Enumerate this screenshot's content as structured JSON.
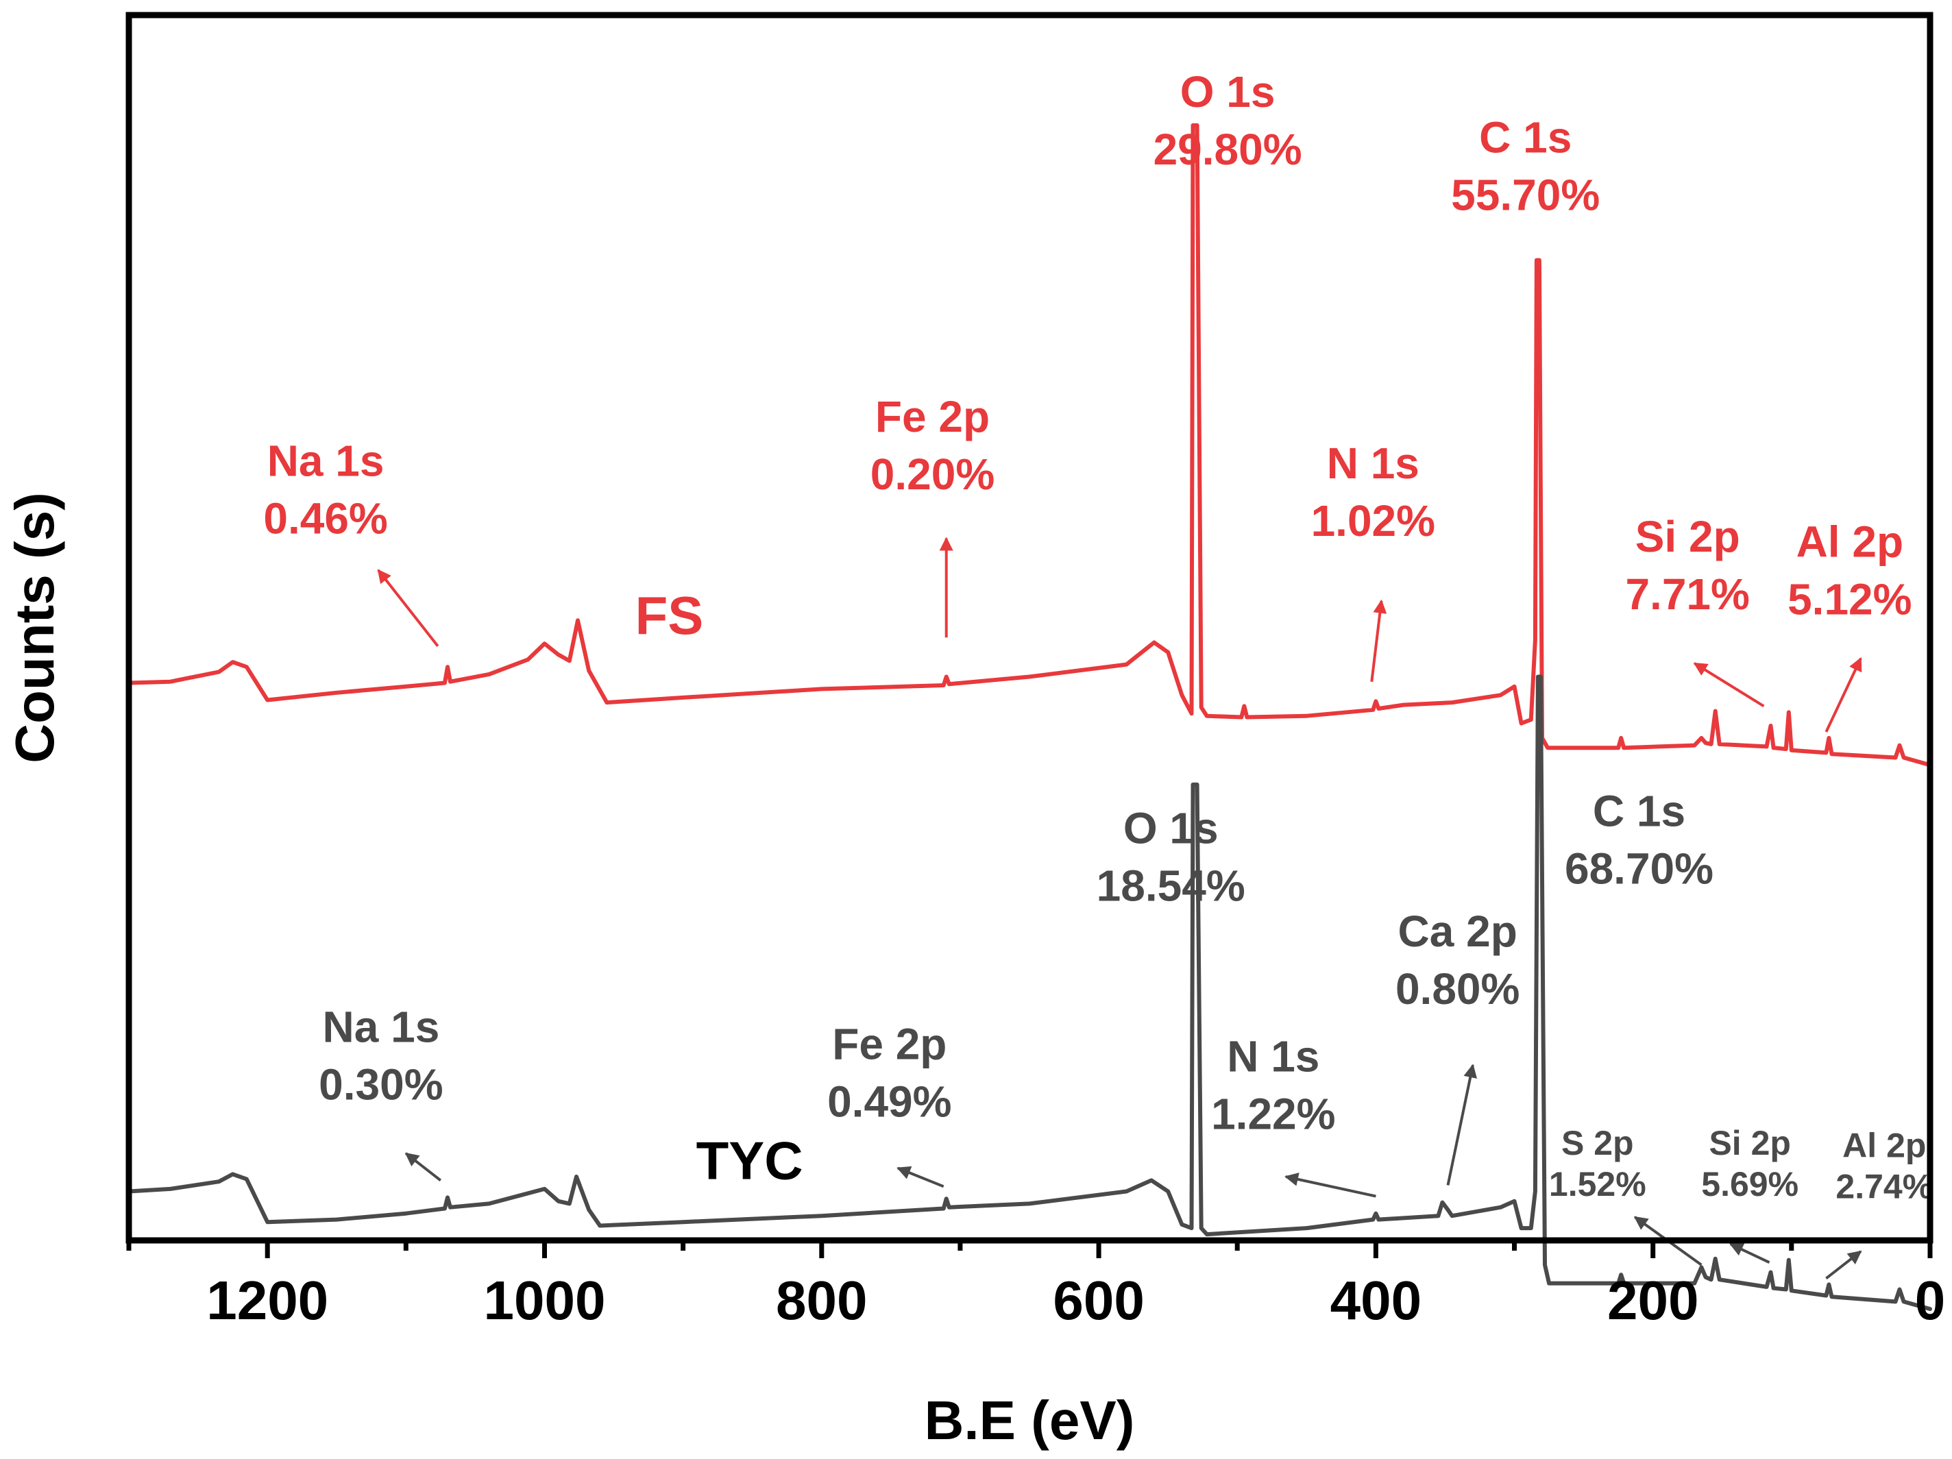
{
  "chart_data": {
    "type": "line",
    "title": "",
    "xlabel": "B.E (eV)",
    "ylabel": "Counts (s)",
    "xlim": [
      1300,
      0
    ],
    "x_reversed": true,
    "xticks": [
      "1200",
      "1000",
      "800",
      "600",
      "400",
      "200",
      "0"
    ],
    "grid": false,
    "legend": "none",
    "colors": {
      "FS": "#e8393c",
      "TYC": "#4a4a4a",
      "axis": "#000000"
    },
    "series": [
      {
        "name": "FS",
        "color": "#e8393c",
        "points": [
          [
            1300,
            0.545
          ],
          [
            1270,
            0.544
          ],
          [
            1235,
            0.536
          ],
          [
            1225,
            0.528
          ],
          [
            1215,
            0.532
          ],
          [
            1200,
            0.559
          ],
          [
            1150,
            0.553
          ],
          [
            1100,
            0.548
          ],
          [
            1072,
            0.545
          ],
          [
            1070,
            0.532
          ],
          [
            1068,
            0.544
          ],
          [
            1040,
            0.538
          ],
          [
            1012,
            0.526
          ],
          [
            1000,
            0.513
          ],
          [
            990,
            0.522
          ],
          [
            982,
            0.527
          ],
          [
            976,
            0.494
          ],
          [
            968,
            0.535
          ],
          [
            955,
            0.561
          ],
          [
            900,
            0.557
          ],
          [
            800,
            0.55
          ],
          [
            712,
            0.547
          ],
          [
            710,
            0.54
          ],
          [
            708,
            0.546
          ],
          [
            650,
            0.54
          ],
          [
            580,
            0.53
          ],
          [
            560,
            0.512
          ],
          [
            550,
            0.52
          ],
          [
            540,
            0.555
          ],
          [
            533,
            0.57
          ],
          [
            532,
            0.09
          ],
          [
            529,
            0.09
          ],
          [
            526,
            0.565
          ],
          [
            522,
            0.572
          ],
          [
            497,
            0.573
          ],
          [
            495,
            0.564
          ],
          [
            493,
            0.573
          ],
          [
            450,
            0.572
          ],
          [
            402,
            0.567
          ],
          [
            400,
            0.56
          ],
          [
            398,
            0.566
          ],
          [
            380,
            0.563
          ],
          [
            345,
            0.561
          ],
          [
            310,
            0.555
          ],
          [
            300,
            0.548
          ],
          [
            295,
            0.578
          ],
          [
            288,
            0.575
          ],
          [
            285,
            0.51
          ],
          [
            284,
            0.2
          ],
          [
            282,
            0.2
          ],
          [
            280,
            0.59
          ],
          [
            276,
            0.598
          ],
          [
            225,
            0.598
          ],
          [
            223,
            0.59
          ],
          [
            221,
            0.598
          ],
          [
            170,
            0.596
          ],
          [
            165,
            0.59
          ],
          [
            162,
            0.594
          ],
          [
            158,
            0.595
          ],
          [
            155,
            0.568
          ],
          [
            152,
            0.595
          ],
          [
            118,
            0.597
          ],
          [
            115,
            0.58
          ],
          [
            113,
            0.598
          ],
          [
            104,
            0.599
          ],
          [
            102,
            0.569
          ],
          [
            100,
            0.6
          ],
          [
            75,
            0.602
          ],
          [
            73,
            0.59
          ],
          [
            71,
            0.603
          ],
          [
            25,
            0.606
          ],
          [
            22,
            0.596
          ],
          [
            19,
            0.606
          ],
          [
            0,
            0.612
          ]
        ]
      },
      {
        "name": "TYC",
        "color": "#4a4a4a",
        "points": [
          [
            1300,
            0.96
          ],
          [
            1270,
            0.958
          ],
          [
            1235,
            0.952
          ],
          [
            1225,
            0.946
          ],
          [
            1215,
            0.95
          ],
          [
            1200,
            0.985
          ],
          [
            1150,
            0.983
          ],
          [
            1100,
            0.978
          ],
          [
            1072,
            0.974
          ],
          [
            1070,
            0.965
          ],
          [
            1068,
            0.973
          ],
          [
            1040,
            0.97
          ],
          [
            1000,
            0.958
          ],
          [
            990,
            0.968
          ],
          [
            982,
            0.97
          ],
          [
            977,
            0.948
          ],
          [
            968,
            0.975
          ],
          [
            960,
            0.988
          ],
          [
            900,
            0.985
          ],
          [
            800,
            0.98
          ],
          [
            712,
            0.974
          ],
          [
            710,
            0.966
          ],
          [
            708,
            0.973
          ],
          [
            650,
            0.97
          ],
          [
            580,
            0.96
          ],
          [
            562,
            0.951
          ],
          [
            550,
            0.96
          ],
          [
            540,
            0.987
          ],
          [
            533,
            0.99
          ],
          [
            532,
            0.628
          ],
          [
            529,
            0.628
          ],
          [
            526,
            0.99
          ],
          [
            522,
            0.995
          ],
          [
            450,
            0.99
          ],
          [
            402,
            0.983
          ],
          [
            400,
            0.978
          ],
          [
            398,
            0.983
          ],
          [
            355,
            0.98
          ],
          [
            352,
            0.969
          ],
          [
            348,
            0.975
          ],
          [
            345,
            0.98
          ],
          [
            310,
            0.973
          ],
          [
            300,
            0.968
          ],
          [
            295,
            0.99
          ],
          [
            288,
            0.99
          ],
          [
            285,
            0.96
          ],
          [
            283,
            0.54
          ],
          [
            281,
            0.54
          ],
          [
            278,
            1.02
          ],
          [
            275,
            1.035
          ],
          [
            225,
            1.035
          ],
          [
            223,
            1.028
          ],
          [
            221,
            1.035
          ],
          [
            170,
            1.035
          ],
          [
            165,
            1.022
          ],
          [
            162,
            1.03
          ],
          [
            158,
            1.032
          ],
          [
            155,
            1.015
          ],
          [
            152,
            1.032
          ],
          [
            118,
            1.038
          ],
          [
            115,
            1.026
          ],
          [
            113,
            1.039
          ],
          [
            104,
            1.04
          ],
          [
            102,
            1.016
          ],
          [
            100,
            1.041
          ],
          [
            75,
            1.045
          ],
          [
            73,
            1.036
          ],
          [
            71,
            1.046
          ],
          [
            25,
            1.05
          ],
          [
            22,
            1.04
          ],
          [
            19,
            1.05
          ],
          [
            0,
            1.056
          ]
        ]
      }
    ],
    "series_labels": [
      {
        "text": "FS",
        "series": "FS",
        "x": 910,
        "y": 0.505
      },
      {
        "text": "TYC",
        "series": "TYC",
        "x": 852,
        "y": 0.95
      }
    ],
    "annotations": [
      {
        "series": "FS",
        "size": "large",
        "lines": [
          "O 1s",
          "29.80%"
        ],
        "x": 507,
        "y": 0.075
      },
      {
        "series": "FS",
        "size": "large",
        "lines": [
          "C 1s",
          "55.70%"
        ],
        "x": 292,
        "y": 0.112
      },
      {
        "series": "FS",
        "size": "large",
        "lines": [
          "Na 1s",
          "0.46%"
        ],
        "x": 1158,
        "y": 0.376
      },
      {
        "series": "FS",
        "size": "large",
        "lines": [
          "Fe 2p",
          "0.20%"
        ],
        "x": 720,
        "y": 0.34
      },
      {
        "series": "FS",
        "size": "large",
        "lines": [
          "N 1s",
          "1.02%"
        ],
        "x": 402,
        "y": 0.378
      },
      {
        "series": "FS",
        "size": "large",
        "lines": [
          "Si 2p",
          "7.71%"
        ],
        "x": 175,
        "y": 0.438
      },
      {
        "series": "FS",
        "size": "large",
        "lines": [
          "Al 2p",
          "5.12%"
        ],
        "x": 58,
        "y": 0.442
      },
      {
        "series": "TYC",
        "size": "large",
        "lines": [
          "O 1s",
          "18.54%"
        ],
        "x": 548,
        "y": 0.676
      },
      {
        "series": "TYC",
        "size": "large",
        "lines": [
          "C 1s",
          "68.70%"
        ],
        "x": 210,
        "y": 0.662
      },
      {
        "series": "TYC",
        "size": "large",
        "lines": [
          "Ca 2p",
          "0.80%"
        ],
        "x": 341,
        "y": 0.76
      },
      {
        "series": "TYC",
        "size": "large",
        "lines": [
          "Na 1s",
          "0.30%"
        ],
        "x": 1118,
        "y": 0.838
      },
      {
        "series": "TYC",
        "size": "large",
        "lines": [
          "Fe 2p",
          "0.49%"
        ],
        "x": 751,
        "y": 0.852
      },
      {
        "series": "TYC",
        "size": "large",
        "lines": [
          "N 1s",
          "1.22%"
        ],
        "x": 474,
        "y": 0.862
      },
      {
        "series": "TYC",
        "size": "small",
        "lines": [
          "S 2p",
          "1.52%"
        ],
        "x": 240,
        "y": 0.93
      },
      {
        "series": "TYC",
        "size": "small",
        "lines": [
          "Si 2p",
          "5.69%"
        ],
        "x": 130,
        "y": 0.93
      },
      {
        "series": "TYC",
        "size": "small",
        "lines": [
          "Al 2p",
          "2.74%"
        ],
        "x": 33,
        "y": 0.932
      }
    ],
    "arrows": [
      {
        "series": "FS",
        "from": [
          1077,
          0.515
        ],
        "to": [
          1120,
          0.453
        ]
      },
      {
        "series": "FS",
        "from": [
          710,
          0.508
        ],
        "to": [
          710,
          0.427
        ]
      },
      {
        "series": "FS",
        "from": [
          403,
          0.544
        ],
        "to": [
          396,
          0.478
        ]
      },
      {
        "series": "FS",
        "from": [
          120,
          0.564
        ],
        "to": [
          170,
          0.529
        ]
      },
      {
        "series": "FS",
        "from": [
          75,
          0.585
        ],
        "to": [
          50,
          0.525
        ]
      },
      {
        "series": "TYC",
        "from": [
          1075,
          0.951
        ],
        "to": [
          1100,
          0.929
        ]
      },
      {
        "series": "TYC",
        "from": [
          712,
          0.956
        ],
        "to": [
          745,
          0.941
        ]
      },
      {
        "series": "TYC",
        "from": [
          400,
          0.964
        ],
        "to": [
          465,
          0.948
        ]
      },
      {
        "series": "TYC",
        "from": [
          348,
          0.955
        ],
        "to": [
          330,
          0.857
        ]
      },
      {
        "series": "TYC",
        "from": [
          165,
          1.02
        ],
        "to": [
          213,
          0.981
        ]
      },
      {
        "series": "TYC",
        "from": [
          116,
          1.018
        ],
        "to": [
          144,
          1.003
        ]
      },
      {
        "series": "TYC",
        "from": [
          75,
          1.031
        ],
        "to": [
          50,
          1.009
        ]
      }
    ]
  }
}
